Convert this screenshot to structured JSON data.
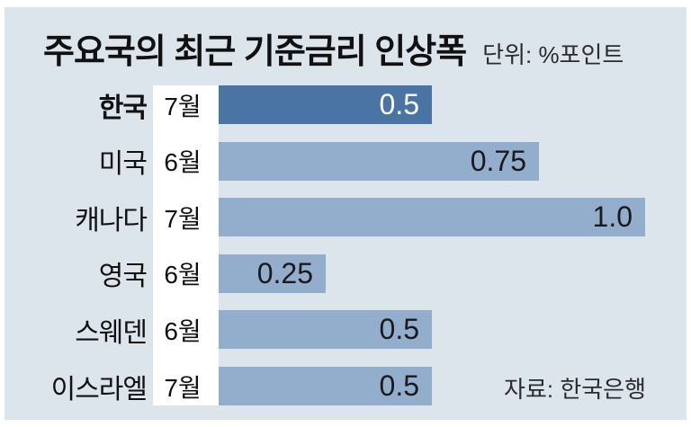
{
  "title": "주요국의 최근 기준금리 인상폭",
  "unit_label": "단위: %포인트",
  "source_label": "자료: 한국은행",
  "colors": {
    "panel_background": "#dce5ec",
    "bar": "#93aecd",
    "bar_highlight": "#4a74a4",
    "value_text": "#1a1a1a",
    "value_text_highlight": "#ffffff",
    "month_column_background": "#ffffff"
  },
  "chart_data": {
    "type": "bar",
    "orientation": "horizontal",
    "title": "주요국의 최근 기준금리 인상폭",
    "unit": "%포인트",
    "source": "한국은행",
    "categories": [
      "한국",
      "미국",
      "캐나다",
      "영국",
      "스웨덴",
      "이스라엘"
    ],
    "months": [
      "7월",
      "6월",
      "7월",
      "6월",
      "6월",
      "7월"
    ],
    "values": [
      0.5,
      0.75,
      1.0,
      0.25,
      0.5,
      0.5
    ],
    "value_labels": [
      "0.5",
      "0.75",
      "1.0",
      "0.25",
      "0.5",
      "0.5"
    ],
    "highlighted_index": 0,
    "xlim": [
      0,
      1.0
    ],
    "grid": false,
    "legend": false
  },
  "rows": [
    {
      "country": "한국",
      "month": "7월",
      "value": 0.5,
      "label": "0.5",
      "highlight": true
    },
    {
      "country": "미국",
      "month": "6월",
      "value": 0.75,
      "label": "0.75",
      "highlight": false
    },
    {
      "country": "캐나다",
      "month": "7월",
      "value": 1.0,
      "label": "1.0",
      "highlight": false
    },
    {
      "country": "영국",
      "month": "6월",
      "value": 0.25,
      "label": "0.25",
      "highlight": false
    },
    {
      "country": "스웨덴",
      "month": "6월",
      "value": 0.5,
      "label": "0.5",
      "highlight": false
    },
    {
      "country": "이스라엘",
      "month": "7월",
      "value": 0.5,
      "label": "0.5",
      "highlight": false
    }
  ]
}
